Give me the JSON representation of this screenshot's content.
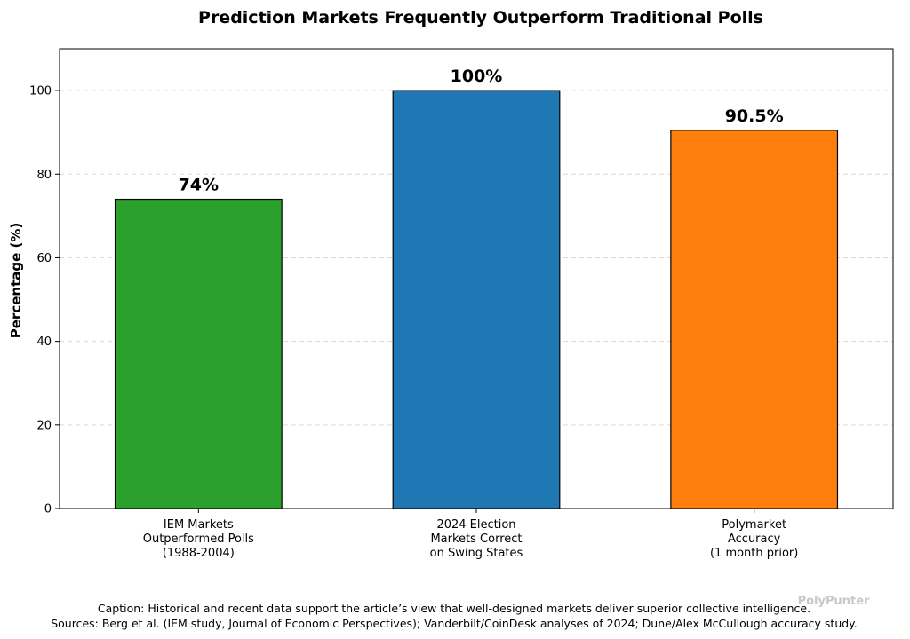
{
  "chart_data": {
    "type": "bar",
    "title": "Prediction Markets Frequently Outperform Traditional Polls",
    "ylabel": "Percentage (%)",
    "xlabel": "",
    "ylim": [
      0,
      110
    ],
    "yticks": [
      "0",
      "20",
      "40",
      "60",
      "80",
      "100"
    ],
    "grid": "horizontal, dashed",
    "categories": [
      [
        "IEM Markets",
        "Outperformed Polls",
        "(1988-2004)"
      ],
      [
        "2024 Election",
        "Markets Correct",
        "on Swing States"
      ],
      [
        "Polymarket",
        "Accuracy",
        "(1 month prior)"
      ]
    ],
    "values": [
      74,
      100,
      90.5
    ],
    "data_labels": [
      "74%",
      "100%",
      "90.5%"
    ],
    "colors": [
      "#2ca02c",
      "#1f77b4",
      "#ff7f0e"
    ]
  },
  "caption": {
    "line1": "Caption: Historical and recent data support the article’s view that well-designed markets deliver superior collective intelligence.",
    "line2": "Sources: Berg et al. (IEM study, Journal of Economic Perspectives); Vanderbilt/CoinDesk analyses of 2024; Dune/Alex McCullough accuracy study."
  },
  "watermark": "PolyPunter"
}
